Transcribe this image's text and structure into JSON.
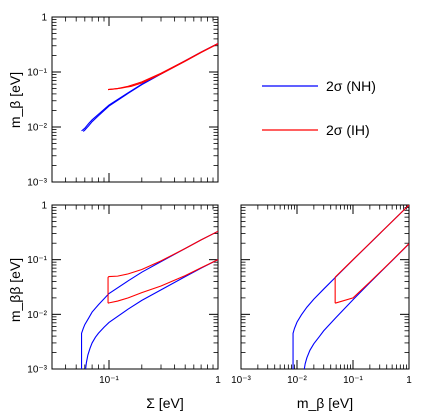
{
  "chart_data": [
    {
      "type": "line",
      "panel": "top-left",
      "xlabel": "",
      "ylabel": "m_β [eV]",
      "xscale": "log",
      "yscale": "log",
      "xlim": [
        0.03,
        1
      ],
      "ylim": [
        0.001,
        1
      ],
      "x_ticks": [],
      "y_ticks": [
        "10⁻³",
        "10⁻²",
        "10⁻¹",
        "1"
      ],
      "series": [
        {
          "name": "2σ (NH)",
          "color": "#0000ff",
          "x": [
            0.056,
            0.058,
            0.06,
            0.065,
            0.07,
            0.08,
            0.1,
            0.15,
            0.2,
            0.3,
            0.5,
            0.7,
            1.0
          ],
          "y": [
            0.0085,
            0.009,
            0.0095,
            0.0115,
            0.0135,
            0.017,
            0.025,
            0.042,
            0.06,
            0.093,
            0.16,
            0.23,
            0.33
          ]
        },
        {
          "name": "2σ (NH)",
          "color": "#0000ff",
          "x": [
            0.058,
            0.06,
            0.065,
            0.07,
            0.08,
            0.1,
            0.15,
            0.2,
            0.3,
            0.5,
            0.7,
            1.0
          ],
          "y": [
            0.0083,
            0.0088,
            0.0105,
            0.0125,
            0.016,
            0.024,
            0.041,
            0.059,
            0.092,
            0.158,
            0.228,
            0.328
          ]
        },
        {
          "name": "2σ (IH)",
          "color": "#ff0000",
          "x": [
            0.098,
            0.12,
            0.15,
            0.2,
            0.3,
            0.5,
            0.7,
            1.0
          ],
          "y": [
            0.048,
            0.05,
            0.055,
            0.066,
            0.095,
            0.16,
            0.23,
            0.33
          ]
        },
        {
          "name": "2σ (IH)",
          "color": "#ff0000",
          "x": [
            0.098,
            0.11,
            0.13,
            0.16,
            0.2,
            0.3,
            0.5,
            0.7,
            1.0
          ],
          "y": [
            0.048,
            0.049,
            0.051,
            0.055,
            0.063,
            0.092,
            0.157,
            0.226,
            0.326
          ]
        }
      ]
    },
    {
      "type": "line",
      "panel": "bottom-left",
      "xlabel": "Σ [eV]",
      "ylabel": "m_ββ [eV]",
      "xscale": "log",
      "yscale": "log",
      "xlim": [
        0.03,
        1
      ],
      "ylim": [
        0.001,
        1
      ],
      "x_ticks": [
        "10⁻¹",
        "1"
      ],
      "y_ticks": [
        "10⁻³",
        "10⁻²",
        "10⁻¹",
        "1"
      ],
      "series": [
        {
          "name": "2σ (NH) upper",
          "color": "#0000ff",
          "x": [
            0.056,
            0.056,
            0.058,
            0.06,
            0.065,
            0.07,
            0.08,
            0.1,
            0.15,
            0.2,
            0.3,
            0.5,
            0.7,
            1.0
          ],
          "y": [
            0.001,
            0.0045,
            0.0055,
            0.0065,
            0.0085,
            0.011,
            0.015,
            0.024,
            0.041,
            0.059,
            0.092,
            0.16,
            0.23,
            0.33
          ]
        },
        {
          "name": "2σ (NH) lower",
          "color": "#0000ff",
          "x": [
            0.061,
            0.062,
            0.064,
            0.067,
            0.07,
            0.075,
            0.08,
            0.09,
            0.1,
            0.15,
            0.2,
            0.3,
            0.5,
            0.7,
            1.0
          ],
          "y": [
            0.001,
            0.0013,
            0.0018,
            0.0024,
            0.003,
            0.0038,
            0.0045,
            0.0058,
            0.0071,
            0.0125,
            0.018,
            0.028,
            0.049,
            0.07,
            0.1
          ]
        },
        {
          "name": "2σ (IH) upper",
          "color": "#ff0000",
          "x": [
            0.098,
            0.1,
            0.12,
            0.15,
            0.2,
            0.3,
            0.5,
            0.7,
            1.0
          ],
          "y": [
            0.048,
            0.049,
            0.05,
            0.055,
            0.066,
            0.095,
            0.16,
            0.23,
            0.33
          ]
        },
        {
          "name": "2σ (IH) lower",
          "color": "#ff0000",
          "x": [
            0.098,
            0.1,
            0.12,
            0.15,
            0.2,
            0.3,
            0.5,
            0.7,
            1.0
          ],
          "y": [
            0.016,
            0.0162,
            0.0175,
            0.02,
            0.025,
            0.033,
            0.051,
            0.071,
            0.1
          ]
        },
        {
          "name": "2σ (IH) edge",
          "color": "#ff0000",
          "x": [
            0.098,
            0.098
          ],
          "y": [
            0.016,
            0.048
          ]
        }
      ]
    },
    {
      "type": "line",
      "panel": "bottom-right",
      "xlabel": "m_β [eV]",
      "ylabel": "",
      "xscale": "log",
      "yscale": "log",
      "xlim": [
        0.001,
        1
      ],
      "ylim": [
        0.001,
        1
      ],
      "x_ticks": [
        "10⁻³",
        "10⁻²",
        "10⁻¹",
        "1"
      ],
      "y_ticks": [],
      "series": [
        {
          "name": "2σ (NH) upper",
          "color": "#0000ff",
          "x": [
            0.0085,
            0.0085,
            0.009,
            0.01,
            0.012,
            0.015,
            0.02,
            0.03,
            0.05,
            0.1,
            0.2,
            0.5,
            1.0
          ],
          "y": [
            0.001,
            0.0045,
            0.0055,
            0.0072,
            0.0098,
            0.0135,
            0.019,
            0.029,
            0.049,
            0.099,
            0.199,
            0.499,
            0.999
          ]
        },
        {
          "name": "2σ (NH) lower",
          "color": "#0000ff",
          "x": [
            0.0135,
            0.014,
            0.015,
            0.017,
            0.02,
            0.025,
            0.03,
            0.05,
            0.1,
            0.2,
            0.5,
            1.0
          ],
          "y": [
            0.001,
            0.00125,
            0.0016,
            0.0022,
            0.0029,
            0.0039,
            0.005,
            0.0088,
            0.0185,
            0.038,
            0.096,
            0.195
          ]
        },
        {
          "name": "2σ (IH) upper",
          "color": "#ff0000",
          "x": [
            0.048,
            0.1,
            0.2,
            0.5,
            1.0
          ],
          "y": [
            0.048,
            0.1,
            0.2,
            0.5,
            1.0
          ]
        },
        {
          "name": "2σ (IH) lower",
          "color": "#ff0000",
          "x": [
            0.048,
            0.1,
            0.2,
            0.5,
            1.0
          ],
          "y": [
            0.016,
            0.02,
            0.039,
            0.097,
            0.196
          ]
        },
        {
          "name": "2σ (IH) edge",
          "color": "#ff0000",
          "x": [
            0.048,
            0.048
          ],
          "y": [
            0.016,
            0.048
          ]
        }
      ]
    }
  ],
  "legend": {
    "placement": "top-right",
    "entries": [
      {
        "label": "2σ (NH)",
        "color": "#0000ff"
      },
      {
        "label": "2σ (IH)",
        "color": "#ff0000"
      }
    ]
  }
}
